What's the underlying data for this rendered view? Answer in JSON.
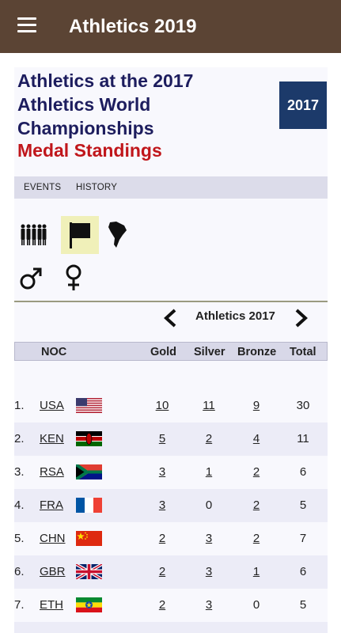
{
  "appbar": {
    "title": "Athletics 2019",
    "menu_icon": "hamburger-menu-icon"
  },
  "header": {
    "title": "Athletics at the 2017 Athletics World Championships",
    "subtitle": "Medal Standings",
    "badge": "2017",
    "colors": {
      "title": "#1d1d5e",
      "subtitle": "#c0161b",
      "badge_bg": "#1c3a6a"
    }
  },
  "tabs": [
    {
      "label": "EVENTS"
    },
    {
      "label": "HISTORY"
    }
  ],
  "filters": [
    {
      "icon": "group-icon",
      "selected": false
    },
    {
      "icon": "flag-icon",
      "selected": true
    },
    {
      "icon": "south-america-icon",
      "selected": false
    },
    {
      "icon": "male-icon",
      "selected": false
    },
    {
      "icon": "female-icon",
      "selected": false
    }
  ],
  "edition_nav": {
    "label": "Athletics 2017",
    "prev_icon": "chevron-left-icon",
    "next_icon": "chevron-right-icon"
  },
  "table": {
    "headers": {
      "noc": "NOC",
      "gold": "Gold",
      "silver": "Silver",
      "bronze": "Bronze",
      "total": "Total"
    },
    "rows": [
      {
        "rank": "1.",
        "noc": "USA",
        "flag": "usa-flag-icon",
        "gold": "10",
        "silver": "11",
        "bronze": "9",
        "total": "30"
      },
      {
        "rank": "2.",
        "noc": "KEN",
        "flag": "kenya-flag-icon",
        "gold": "5",
        "silver": "2",
        "bronze": "4",
        "total": "11"
      },
      {
        "rank": "3.",
        "noc": "RSA",
        "flag": "south-africa-flag-icon",
        "gold": "3",
        "silver": "1",
        "bronze": "2",
        "total": "6"
      },
      {
        "rank": "4.",
        "noc": "FRA",
        "flag": "france-flag-icon",
        "gold": "3",
        "silver": "0",
        "bronze": "2",
        "total": "5"
      },
      {
        "rank": "5.",
        "noc": "CHN",
        "flag": "china-flag-icon",
        "gold": "2",
        "silver": "3",
        "bronze": "2",
        "total": "7"
      },
      {
        "rank": "6.",
        "noc": "GBR",
        "flag": "uk-flag-icon",
        "gold": "2",
        "silver": "3",
        "bronze": "1",
        "total": "6"
      },
      {
        "rank": "7.",
        "noc": "ETH",
        "flag": "ethiopia-flag-icon",
        "gold": "2",
        "silver": "3",
        "bronze": "0",
        "total": "5"
      }
    ]
  }
}
